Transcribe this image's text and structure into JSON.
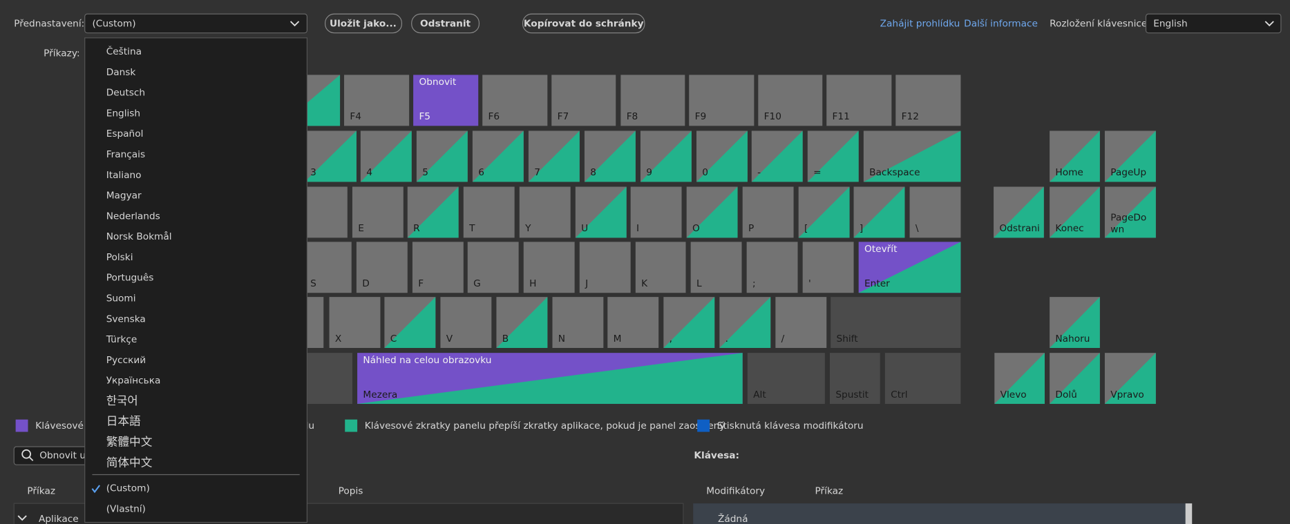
{
  "toolbar": {
    "preset_label": "Přednastavení:",
    "preset_value": "(Custom)",
    "buttons": [
      "Uložit jako...",
      "Odstranit",
      "Kopírovat do schránky"
    ],
    "links": [
      "Zahájit prohlídku",
      "Další informace"
    ],
    "layout_label": "Rozložení klávesnice:",
    "layout_value": "English",
    "commands_label": "Příkazy:"
  },
  "dropdown": {
    "languages": [
      "Čeština",
      "Dansk",
      "Deutsch",
      "English",
      "Español",
      "Français",
      "Italiano",
      "Magyar",
      "Nederlands",
      "Norsk Bokmål",
      "Polski",
      "Português",
      "Suomi",
      "Svenska",
      "Türkçe",
      "Русский",
      "Українська",
      "한국어",
      "日本語",
      "繁體中文",
      "简体中文"
    ],
    "presets": [
      {
        "label": "(Custom)",
        "selected": true
      },
      {
        "label": "(Vlastní)",
        "selected": false
      }
    ]
  },
  "keyboard": {
    "rows": [
      {
        "keys": [
          {
            "kind": "panel"
          },
          {
            "label": "F4",
            "kind": "plain"
          },
          {
            "label": "F5",
            "command": "Obnovit",
            "kind": "app"
          },
          {
            "label": "F6",
            "kind": "plain"
          },
          {
            "label": "F7",
            "kind": "plain"
          },
          {
            "label": "F8",
            "kind": "plain"
          },
          {
            "label": "F9",
            "kind": "plain"
          },
          {
            "label": "F10",
            "kind": "plain"
          },
          {
            "label": "F11",
            "kind": "plain"
          },
          {
            "label": "F12",
            "kind": "plain"
          }
        ]
      },
      {
        "keys": [
          {
            "label": "3",
            "kind": "panel"
          },
          {
            "label": "4",
            "kind": "panel"
          },
          {
            "label": "5",
            "kind": "panel"
          },
          {
            "label": "6",
            "kind": "panel"
          },
          {
            "label": "7",
            "kind": "panel"
          },
          {
            "label": "8",
            "kind": "panel"
          },
          {
            "label": "9",
            "kind": "panel"
          },
          {
            "label": "0",
            "kind": "panel"
          },
          {
            "label": "-",
            "kind": "panel"
          },
          {
            "label": "=",
            "kind": "panel"
          },
          {
            "label": "Backspace",
            "kind": "panel"
          },
          {
            "label": "Home",
            "kind": "panel"
          },
          {
            "label": "PageUp",
            "kind": "panel"
          }
        ]
      },
      {
        "keys": [
          {
            "kind": "plain"
          },
          {
            "label": "E",
            "kind": "plain"
          },
          {
            "label": "R",
            "kind": "panel"
          },
          {
            "label": "T",
            "kind": "plain"
          },
          {
            "label": "Y",
            "kind": "plain"
          },
          {
            "label": "U",
            "kind": "panel"
          },
          {
            "label": "I",
            "kind": "plain"
          },
          {
            "label": "O",
            "kind": "panel"
          },
          {
            "label": "P",
            "kind": "plain"
          },
          {
            "label": "[",
            "kind": "panel"
          },
          {
            "label": "]",
            "kind": "panel"
          },
          {
            "label": "\\",
            "kind": "plain"
          },
          {
            "label": "Odstrani",
            "kind": "panel"
          },
          {
            "label": "Konec",
            "kind": "panel"
          },
          {
            "label": "PageDown",
            "kind": "panel"
          }
        ]
      },
      {
        "keys": [
          {
            "label": "S",
            "kind": "plain"
          },
          {
            "label": "D",
            "kind": "plain"
          },
          {
            "label": "F",
            "kind": "plain"
          },
          {
            "label": "G",
            "kind": "plain"
          },
          {
            "label": "H",
            "kind": "plain"
          },
          {
            "label": "J",
            "kind": "plain"
          },
          {
            "label": "K",
            "kind": "plain"
          },
          {
            "label": "L",
            "kind": "plain"
          },
          {
            "label": ";",
            "kind": "plain"
          },
          {
            "label": "'",
            "kind": "plain"
          },
          {
            "label": "Enter",
            "command": "Otevřít",
            "kind": "app-panel"
          }
        ]
      },
      {
        "keys": [
          {
            "kind": "plain"
          },
          {
            "label": "X",
            "kind": "plain"
          },
          {
            "label": "C",
            "kind": "panel"
          },
          {
            "label": "V",
            "kind": "plain"
          },
          {
            "label": "B",
            "kind": "panel"
          },
          {
            "label": "N",
            "kind": "plain"
          },
          {
            "label": "M",
            "kind": "plain"
          },
          {
            "label": ",",
            "kind": "panel"
          },
          {
            "label": ".",
            "kind": "panel"
          },
          {
            "label": "/",
            "kind": "plain"
          },
          {
            "label": "Shift",
            "kind": "modifier"
          },
          {
            "label": "Nahoru",
            "kind": "panel"
          }
        ]
      },
      {
        "keys": [
          {
            "kind": "modifier"
          },
          {
            "label": "Mezera",
            "command": "Náhled na celou obrazovku",
            "kind": "app-panel"
          },
          {
            "label": "Alt",
            "kind": "modifier"
          },
          {
            "label": "Spustit",
            "kind": "modifier"
          },
          {
            "label": "Ctrl",
            "kind": "modifier"
          },
          {
            "label": "Vlevo",
            "kind": "panel"
          },
          {
            "label": "Dolů",
            "kind": "panel"
          },
          {
            "label": "Vpravo",
            "kind": "panel"
          }
        ]
      }
    ]
  },
  "legend": [
    {
      "label": "Klávesové zkratky aplikace",
      "color": "#7451c8"
    },
    {
      "label": "Klávesové zkratky panelu",
      "color": "#22b38c"
    },
    {
      "label": "Klávesové zkratky panelu přepíší zkratky aplikace, pokud je panel zaostřený",
      "color": "#22b38c"
    },
    {
      "label": "Stisknutá klávesa modifikátoru",
      "color": "#0f5fc4"
    }
  ],
  "search": {
    "placeholder": "Obnovit ul"
  },
  "key_panel": {
    "title": "Klávesa:",
    "headers": [
      "Modifikátory",
      "Příkaz"
    ],
    "rows": [
      "Žádná"
    ]
  },
  "command_table": {
    "headers": [
      "Příkaz",
      "Popis"
    ],
    "rows": [
      "Aplikace"
    ]
  }
}
